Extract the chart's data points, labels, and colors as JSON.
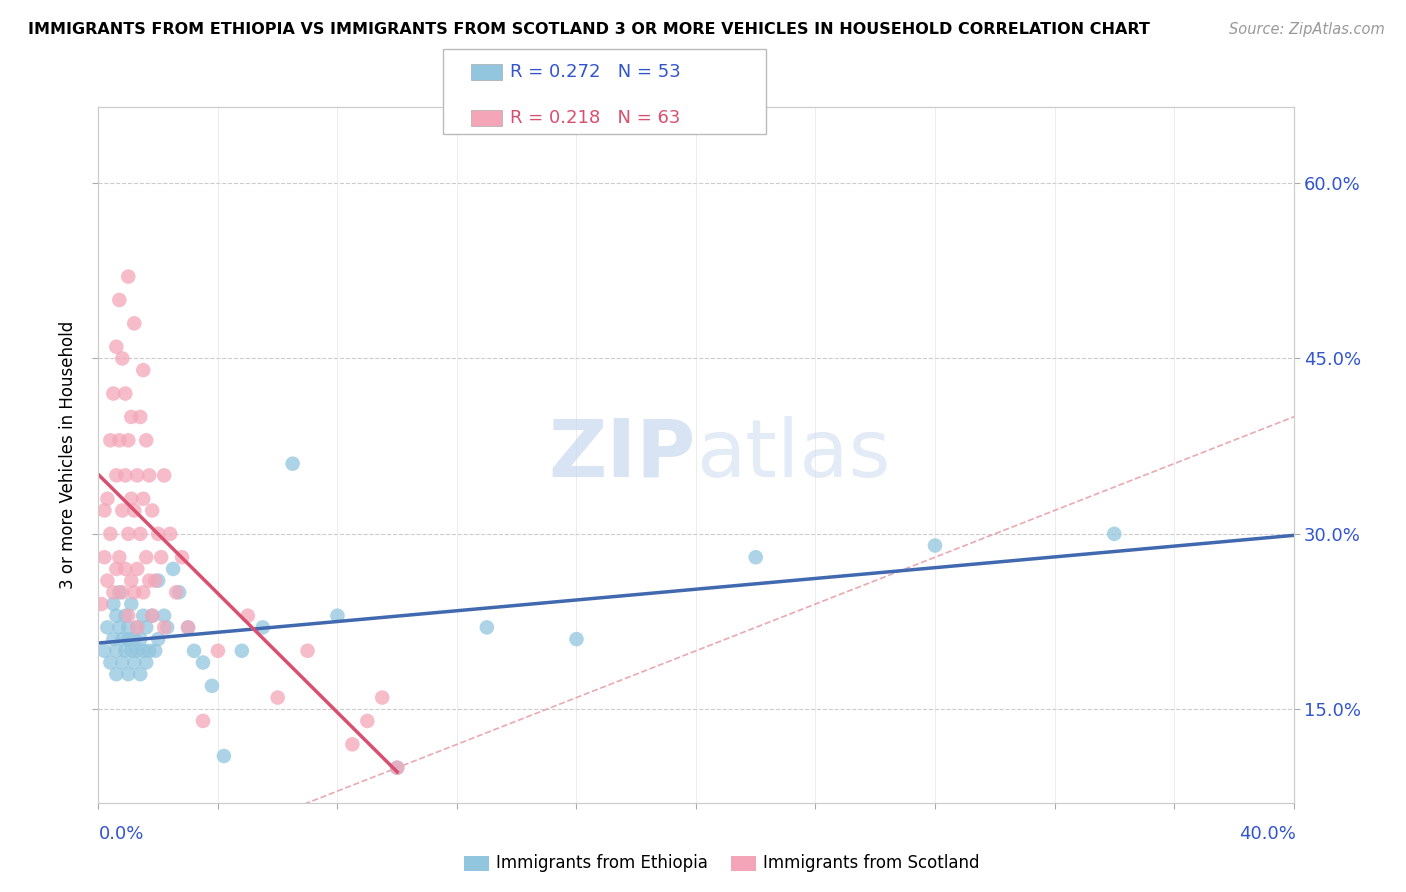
{
  "title": "IMMIGRANTS FROM ETHIOPIA VS IMMIGRANTS FROM SCOTLAND 3 OR MORE VEHICLES IN HOUSEHOLD CORRELATION CHART",
  "source": "Source: ZipAtlas.com",
  "ylabel": "3 or more Vehicles in Household",
  "ytick_labels": [
    "15.0%",
    "30.0%",
    "45.0%",
    "60.0%"
  ],
  "ytick_vals": [
    0.15,
    0.3,
    0.45,
    0.6
  ],
  "xlim": [
    0.0,
    0.4
  ],
  "ylim": [
    0.07,
    0.665
  ],
  "legend_ethiopia_R": "R = 0.272",
  "legend_ethiopia_N": "N = 53",
  "legend_scotland_R": "R = 0.218",
  "legend_scotland_N": "N = 63",
  "ethiopia_color": "#92C5DE",
  "scotland_color": "#F4A6B8",
  "ethiopia_line_color": "#4169B0",
  "scotland_line_color": "#D94F70",
  "diag_line_color": "#E8A0AA",
  "ethiopia_points_x": [
    0.002,
    0.003,
    0.004,
    0.005,
    0.005,
    0.006,
    0.006,
    0.006,
    0.007,
    0.007,
    0.008,
    0.008,
    0.009,
    0.009,
    0.01,
    0.01,
    0.01,
    0.011,
    0.011,
    0.012,
    0.012,
    0.013,
    0.013,
    0.014,
    0.014,
    0.015,
    0.015,
    0.016,
    0.016,
    0.017,
    0.018,
    0.019,
    0.02,
    0.02,
    0.022,
    0.023,
    0.025,
    0.027,
    0.03,
    0.032,
    0.035,
    0.038,
    0.042,
    0.048,
    0.055,
    0.065,
    0.08,
    0.1,
    0.13,
    0.16,
    0.22,
    0.28,
    0.34
  ],
  "ethiopia_points_y": [
    0.2,
    0.22,
    0.19,
    0.21,
    0.24,
    0.2,
    0.23,
    0.18,
    0.22,
    0.25,
    0.21,
    0.19,
    0.23,
    0.2,
    0.22,
    0.18,
    0.21,
    0.2,
    0.24,
    0.21,
    0.19,
    0.22,
    0.2,
    0.21,
    0.18,
    0.2,
    0.23,
    0.19,
    0.22,
    0.2,
    0.23,
    0.2,
    0.26,
    0.21,
    0.23,
    0.22,
    0.27,
    0.25,
    0.22,
    0.2,
    0.19,
    0.17,
    0.11,
    0.2,
    0.22,
    0.36,
    0.23,
    0.1,
    0.22,
    0.21,
    0.28,
    0.29,
    0.3
  ],
  "scotland_points_x": [
    0.001,
    0.002,
    0.002,
    0.003,
    0.003,
    0.004,
    0.004,
    0.005,
    0.005,
    0.006,
    0.006,
    0.006,
    0.007,
    0.007,
    0.007,
    0.008,
    0.008,
    0.008,
    0.009,
    0.009,
    0.009,
    0.01,
    0.01,
    0.01,
    0.01,
    0.011,
    0.011,
    0.011,
    0.012,
    0.012,
    0.012,
    0.013,
    0.013,
    0.013,
    0.014,
    0.014,
    0.015,
    0.015,
    0.015,
    0.016,
    0.016,
    0.017,
    0.017,
    0.018,
    0.018,
    0.019,
    0.02,
    0.021,
    0.022,
    0.022,
    0.024,
    0.026,
    0.028,
    0.03,
    0.035,
    0.04,
    0.05,
    0.06,
    0.07,
    0.085,
    0.09,
    0.095,
    0.1
  ],
  "scotland_points_y": [
    0.24,
    0.28,
    0.32,
    0.26,
    0.33,
    0.3,
    0.38,
    0.25,
    0.42,
    0.27,
    0.35,
    0.46,
    0.28,
    0.38,
    0.5,
    0.25,
    0.32,
    0.45,
    0.27,
    0.35,
    0.42,
    0.23,
    0.3,
    0.38,
    0.52,
    0.26,
    0.33,
    0.4,
    0.25,
    0.32,
    0.48,
    0.27,
    0.35,
    0.22,
    0.3,
    0.4,
    0.25,
    0.33,
    0.44,
    0.28,
    0.38,
    0.26,
    0.35,
    0.23,
    0.32,
    0.26,
    0.3,
    0.28,
    0.35,
    0.22,
    0.3,
    0.25,
    0.28,
    0.22,
    0.14,
    0.2,
    0.23,
    0.16,
    0.2,
    0.12,
    0.14,
    0.16,
    0.1
  ]
}
